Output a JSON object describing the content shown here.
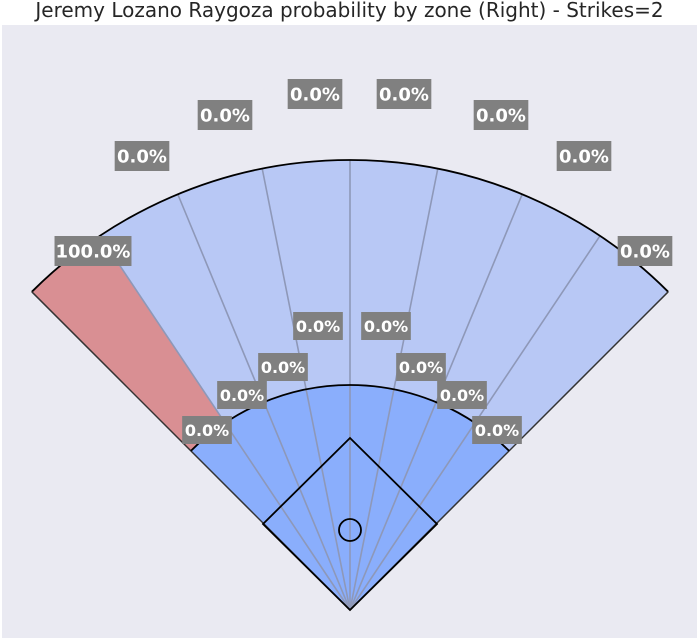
{
  "chart_data": {
    "type": "spray-chart",
    "title": "Jeremy Lozano Raygoza probability by zone (Right) - Strikes=2",
    "grid": false,
    "outfield_zones": [
      {
        "name": "",
        "label": "100.0%",
        "value": 100.0
      },
      {
        "name": "",
        "label": "0.0%",
        "value": 0.0
      },
      {
        "name": "",
        "label": "0.0%",
        "value": 0.0
      },
      {
        "name": "",
        "label": "0.0%",
        "value": 0.0
      },
      {
        "name": "",
        "label": "0.0%",
        "value": 0.0
      },
      {
        "name": "",
        "label": "0.0%",
        "value": 0.0
      },
      {
        "name": "",
        "label": "0.0%",
        "value": 0.0
      },
      {
        "name": "",
        "label": "0.0%",
        "value": 0.0
      }
    ],
    "infield_zones": [
      {
        "name": "",
        "label": "0.0%",
        "value": 0.0
      },
      {
        "name": "",
        "label": "0.0%",
        "value": 0.0
      },
      {
        "name": "",
        "label": "0.0%",
        "value": 0.0
      },
      {
        "name": "",
        "label": "0.0%",
        "value": 0.0
      },
      {
        "name": "",
        "label": "0.0%",
        "value": 0.0
      },
      {
        "name": "",
        "label": "0.0%",
        "value": 0.0
      },
      {
        "name": "",
        "label": "0.0%",
        "value": 0.0
      },
      {
        "name": "",
        "label": "0.0%",
        "value": 0.0
      }
    ],
    "colors": {
      "background": "#eaeaf2",
      "outfield_zero": "#b8c8f5",
      "infield": "#8aaefc",
      "highlight": "#d98f93",
      "label_box": "#808080",
      "label_text": "#ffffff",
      "outline": "#000000",
      "zone_divider": "#8e98b8"
    }
  }
}
